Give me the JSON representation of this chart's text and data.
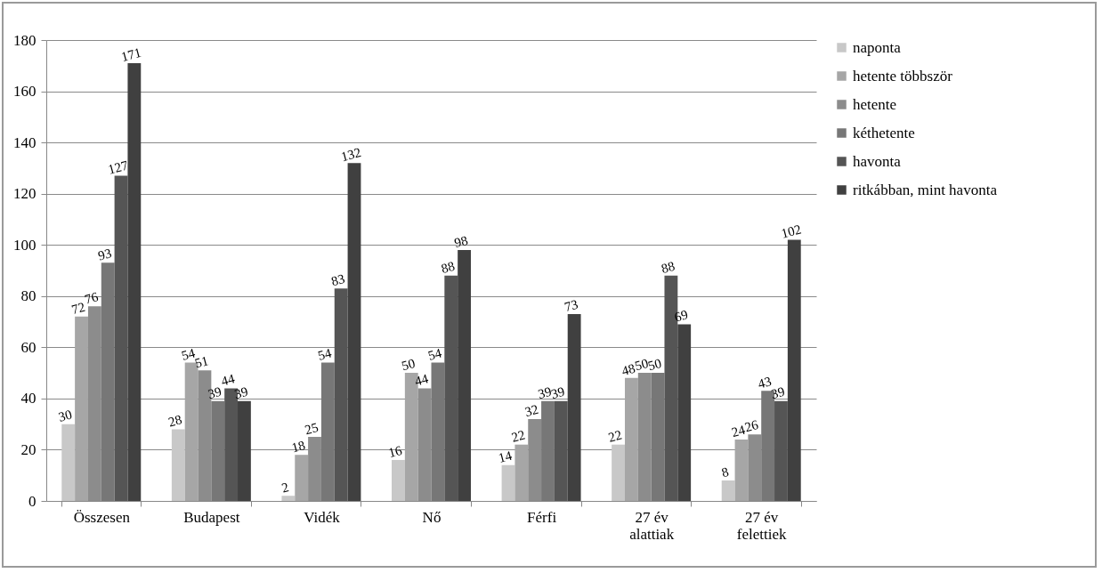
{
  "chart_data": {
    "type": "bar",
    "categories": [
      "Összesen",
      "Budapest",
      "Vidék",
      "Nő",
      "Férfi",
      "27 év alattiak",
      "27 év felettiek"
    ],
    "series": [
      {
        "name": "naponta",
        "color": "#c8c8c8",
        "values": [
          30,
          28,
          2,
          16,
          14,
          22,
          8
        ]
      },
      {
        "name": "hetente többször",
        "color": "#a6a6a6",
        "values": [
          72,
          54,
          18,
          50,
          22,
          48,
          24
        ]
      },
      {
        "name": "hetente",
        "color": "#8c8c8c",
        "values": [
          76,
          51,
          25,
          44,
          32,
          50,
          26
        ]
      },
      {
        "name": "kéthetente",
        "color": "#777777",
        "values": [
          93,
          39,
          54,
          54,
          39,
          50,
          43
        ]
      },
      {
        "name": "havonta",
        "color": "#555555",
        "values": [
          127,
          44,
          83,
          88,
          39,
          88,
          39
        ]
      },
      {
        "name": "ritkábban, mint havonta",
        "color": "#404040",
        "values": [
          171,
          39,
          132,
          98,
          73,
          69,
          102
        ]
      }
    ],
    "ylim": [
      0,
      180
    ],
    "yticks": [
      0,
      20,
      40,
      60,
      80,
      100,
      120,
      140,
      160,
      180
    ],
    "grid": "y",
    "legend": "right",
    "data_labels": true
  }
}
